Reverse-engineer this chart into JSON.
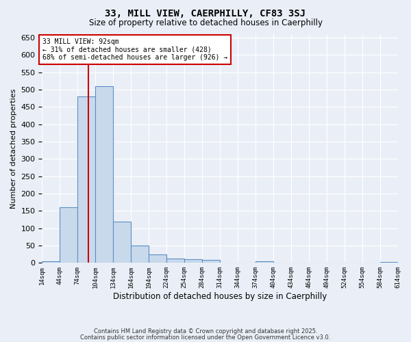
{
  "title": "33, MILL VIEW, CAERPHILLY, CF83 3SJ",
  "subtitle": "Size of property relative to detached houses in Caerphilly",
  "xlabel": "Distribution of detached houses by size in Caerphilly",
  "ylabel": "Number of detached properties",
  "bar_color": "#c9d9ec",
  "bar_edge_color": "#5a8fc3",
  "background_color": "#eaeff7",
  "grid_color": "#ffffff",
  "vline_x": 92,
  "vline_color": "#cc0000",
  "annotation_text": "33 MILL VIEW: 92sqm\n← 31% of detached houses are smaller (428)\n68% of semi-detached houses are larger (926) →",
  "annotation_box_color": "#cc0000",
  "footer_lines": [
    "Contains HM Land Registry data © Crown copyright and database right 2025.",
    "Contains public sector information licensed under the Open Government Licence v3.0."
  ],
  "bin_edges": [
    14,
    44,
    74,
    104,
    134,
    164,
    194,
    224,
    254,
    284,
    314,
    344,
    374,
    404,
    434,
    464,
    494,
    524,
    554,
    584,
    614
  ],
  "bin_values": [
    5,
    160,
    480,
    510,
    120,
    50,
    25,
    12,
    10,
    8,
    0,
    0,
    5,
    0,
    0,
    0,
    0,
    0,
    0,
    3
  ],
  "ylim": [
    0,
    660
  ],
  "yticks": [
    0,
    50,
    100,
    150,
    200,
    250,
    300,
    350,
    400,
    450,
    500,
    550,
    600,
    650
  ]
}
